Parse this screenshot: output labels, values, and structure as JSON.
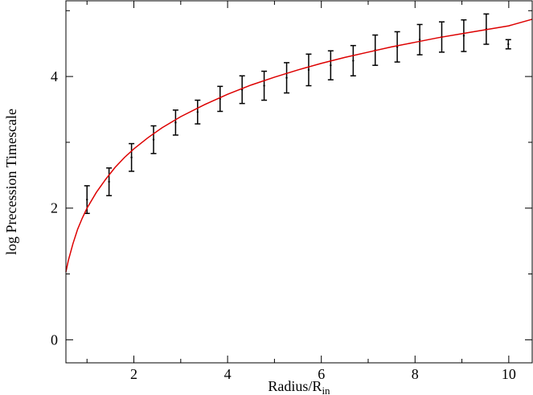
{
  "chart_data": {
    "type": "line",
    "title": "",
    "xlabel": "Radius/R",
    "xlabel_sub": "in",
    "ylabel": "log Precession Timescale",
    "xlim": [
      0.55,
      10.5
    ],
    "ylim": [
      -0.35,
      5.15
    ],
    "xticks": [
      2,
      4,
      6,
      8,
      10
    ],
    "yticks": [
      0,
      2,
      4
    ],
    "grid": false,
    "legend": "none",
    "colors": {
      "model_curve": "#dd0000",
      "data": "#000000",
      "axes": "#000000"
    },
    "series": [
      {
        "type": "errorbar",
        "x": [
          1.0,
          1.47,
          1.95,
          2.42,
          2.89,
          3.36,
          3.84,
          4.31,
          4.78,
          5.26,
          5.73,
          6.2,
          6.68,
          7.15,
          7.62,
          8.1,
          8.57,
          9.04,
          9.52,
          9.99
        ],
        "y": [
          2.13,
          2.4,
          2.77,
          3.04,
          3.3,
          3.46,
          3.66,
          3.8,
          3.86,
          3.98,
          4.1,
          4.17,
          4.24,
          4.4,
          4.45,
          4.56,
          4.6,
          4.62,
          4.72,
          4.49
        ],
        "yerr": [
          0.21,
          0.21,
          0.21,
          0.21,
          0.19,
          0.18,
          0.19,
          0.21,
          0.22,
          0.23,
          0.24,
          0.22,
          0.23,
          0.23,
          0.23,
          0.23,
          0.23,
          0.24,
          0.23,
          0.07
        ]
      },
      {
        "type": "curve",
        "x": [
          0.55,
          0.6,
          0.7,
          0.8,
          0.9,
          1.0,
          1.2,
          1.4,
          1.6,
          1.8,
          2.0,
          2.3,
          2.6,
          3.0,
          3.5,
          4.0,
          4.5,
          5.0,
          5.5,
          6.0,
          6.5,
          7.0,
          7.5,
          8.0,
          8.5,
          9.0,
          9.5,
          10.0,
          10.5
        ],
        "y": [
          1.03,
          1.2,
          1.46,
          1.68,
          1.85,
          2.0,
          2.24,
          2.44,
          2.62,
          2.77,
          2.9,
          3.07,
          3.22,
          3.39,
          3.57,
          3.73,
          3.87,
          3.99,
          4.1,
          4.2,
          4.29,
          4.37,
          4.45,
          4.52,
          4.59,
          4.65,
          4.71,
          4.77,
          4.87
        ]
      }
    ]
  }
}
